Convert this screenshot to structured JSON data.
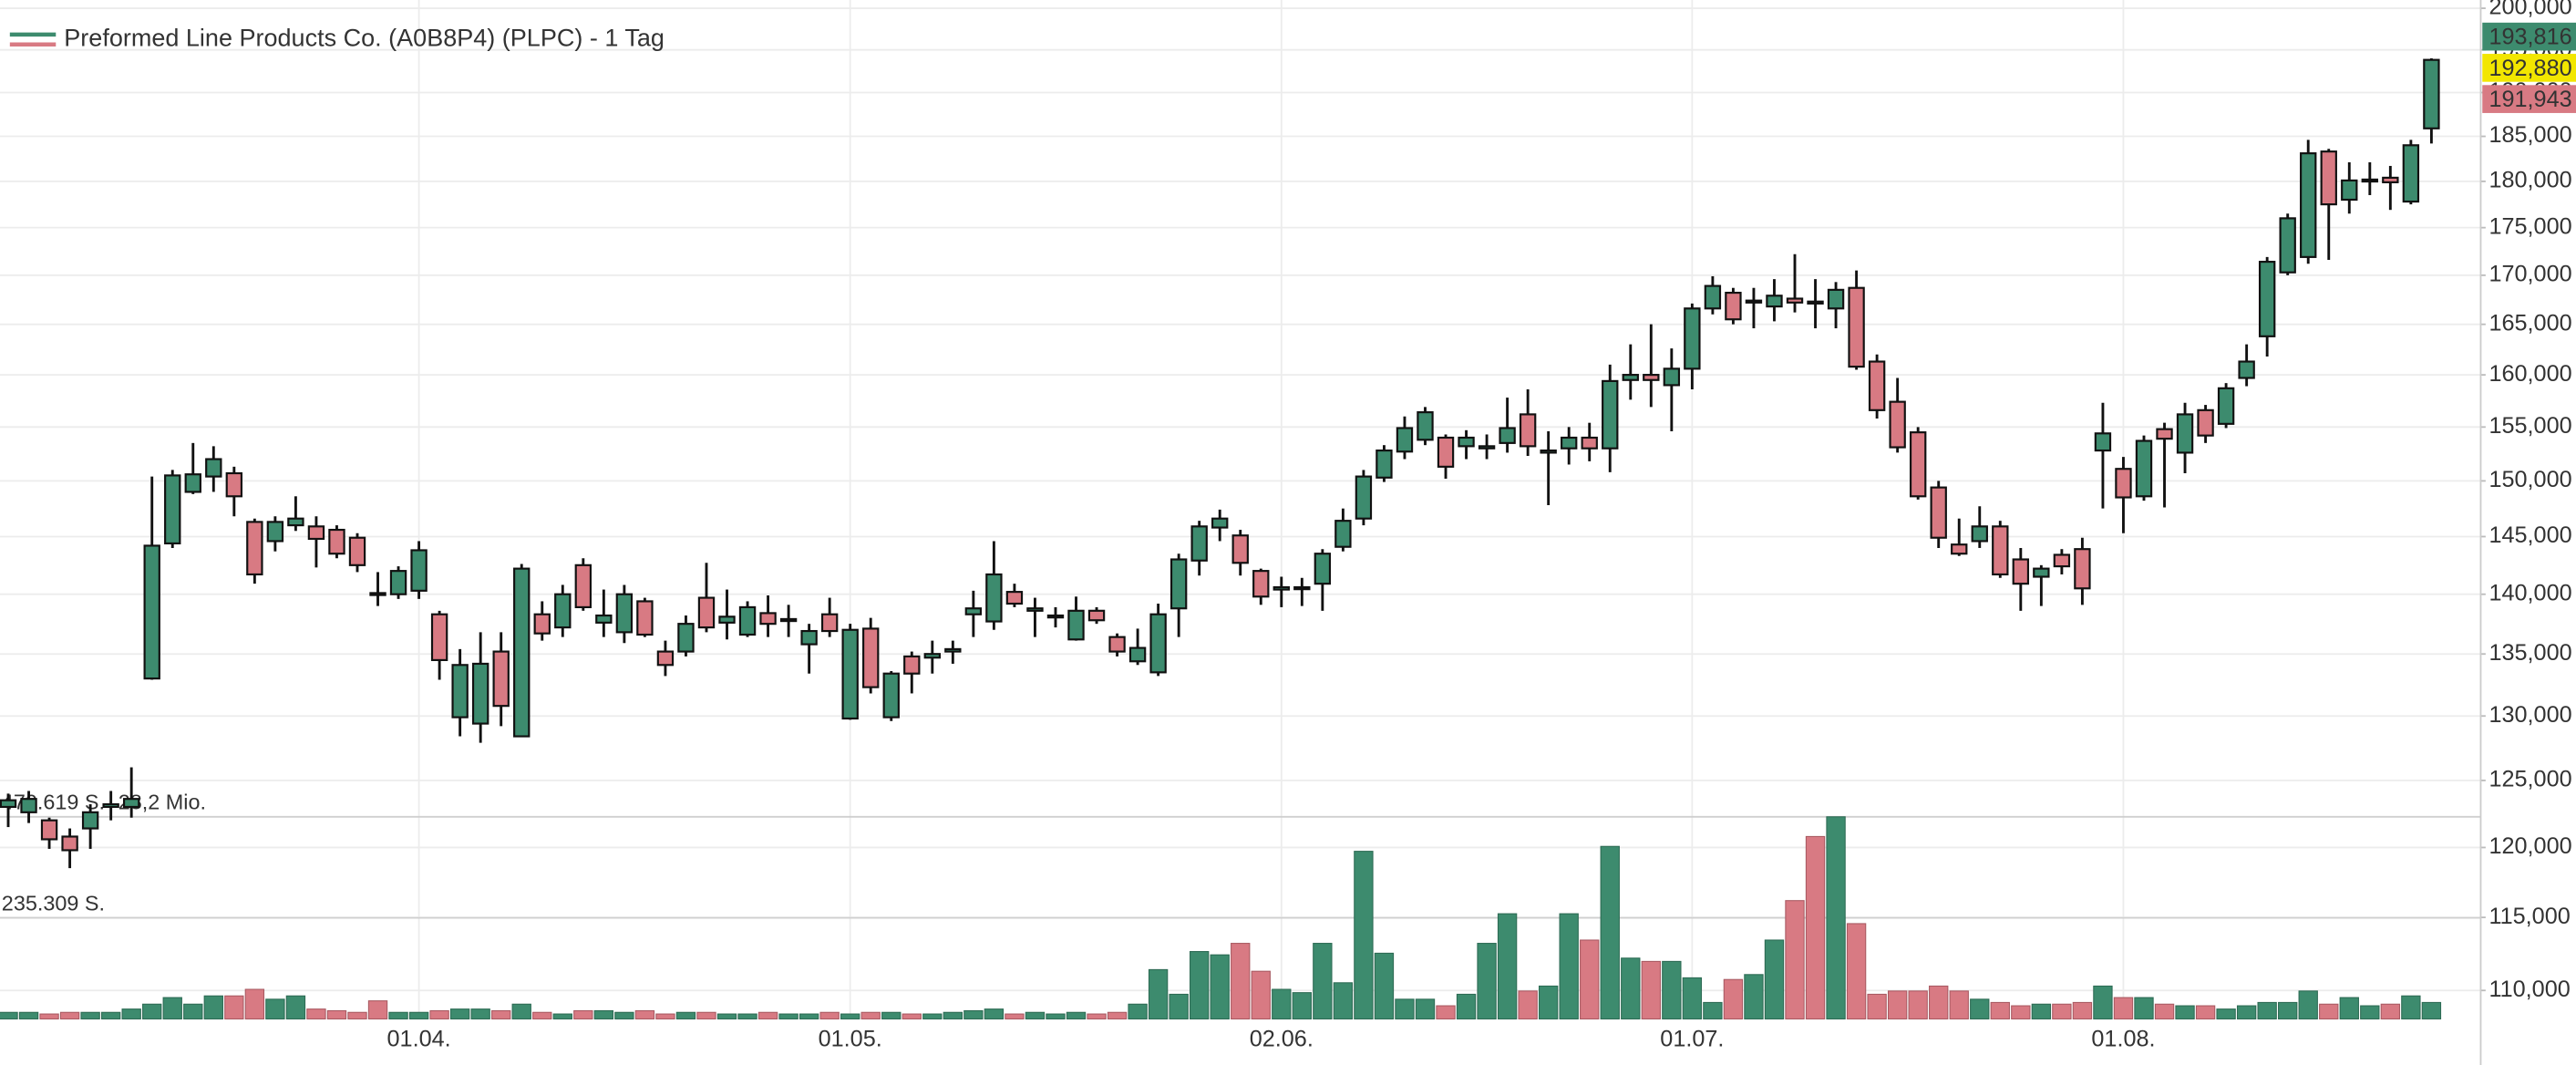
{
  "chart_data": {
    "type": "candlestick",
    "title": "Preformed Line Products Co. (A0B8P4) (PLPC) - 1 Tag",
    "log_scale": true,
    "grid": true,
    "colors": {
      "up": "#3d8b6e",
      "down": "#d87a83"
    },
    "categories": [
      null,
      null,
      null,
      null,
      null,
      null,
      null,
      null,
      null,
      null,
      null,
      null,
      null,
      null,
      null,
      null,
      null,
      null,
      null,
      null,
      "01.04.",
      null,
      null,
      null,
      null,
      null,
      null,
      null,
      null,
      null,
      null,
      null,
      null,
      null,
      null,
      null,
      null,
      null,
      null,
      null,
      null,
      "01.05.",
      null,
      null,
      null,
      null,
      null,
      null,
      null,
      null,
      null,
      null,
      null,
      null,
      null,
      null,
      null,
      null,
      null,
      null,
      null,
      null,
      "02.06.",
      null,
      null,
      null,
      null,
      null,
      null,
      null,
      null,
      null,
      null,
      null,
      null,
      null,
      null,
      null,
      null,
      null,
      null,
      null,
      "01.07.",
      null,
      null,
      null,
      null,
      null,
      null,
      null,
      null,
      null,
      null,
      null,
      null,
      null,
      null,
      null,
      null,
      null,
      null,
      null,
      null,
      "01.08.",
      null,
      null,
      null,
      null,
      null,
      null,
      null,
      null,
      null,
      null,
      null,
      null,
      null,
      null,
      null
    ],
    "open": [
      123000,
      122600,
      122000,
      120800,
      121400,
      123000,
      123000,
      133000,
      144400,
      149000,
      150400,
      150700,
      146300,
      144600,
      146000,
      145900,
      145600,
      144900,
      140100,
      140000,
      140300,
      138300,
      129900,
      129400,
      135200,
      128400,
      138300,
      137200,
      142500,
      137600,
      136800,
      139400,
      135200,
      135200,
      139700,
      137600,
      136600,
      138400,
      137800,
      135800,
      138300,
      129800,
      137100,
      129900,
      134800,
      134700,
      135200,
      138300,
      137700,
      140200,
      138600,
      138100,
      136200,
      138600,
      136400,
      134400,
      133500,
      138800,
      142900,
      145800,
      145100,
      142000,
      140400,
      140500,
      140900,
      144100,
      146600,
      150300,
      152700,
      153800,
      154000,
      153200,
      153000,
      153500,
      156200,
      152600,
      153000,
      154000,
      153000,
      159500,
      160000,
      159000,
      160600,
      166600,
      168200,
      167200,
      166800,
      167600,
      167300,
      166600,
      168700,
      161300,
      157400,
      154500,
      149400,
      144300,
      144600,
      145900,
      143000,
      141500,
      143400,
      143900,
      152800,
      151100,
      148600,
      154800,
      152600,
      156600,
      155300,
      159700,
      163800,
      170300,
      171900,
      183300,
      178000,
      180000,
      180400,
      177800,
      185900
    ],
    "high": [
      124000,
      124200,
      122200,
      121400,
      123200,
      124200,
      126000,
      150400,
      151000,
      153500,
      153200,
      151300,
      146600,
      146800,
      148600,
      146800,
      146000,
      145300,
      141900,
      142400,
      144600,
      138600,
      135400,
      136800,
      136800,
      142600,
      139400,
      140800,
      143100,
      140400,
      140800,
      139700,
      136100,
      138200,
      142700,
      140400,
      139400,
      139900,
      139100,
      137500,
      139700,
      137500,
      138000,
      133600,
      135200,
      136100,
      136100,
      140300,
      144600,
      140900,
      139700,
      138900,
      139800,
      138900,
      136700,
      137100,
      139200,
      143500,
      146400,
      147400,
      145600,
      142200,
      141500,
      141400,
      143900,
      147500,
      151000,
      153300,
      156000,
      156900,
      154300,
      154700,
      154300,
      157800,
      158600,
      154600,
      155000,
      155400,
      161000,
      163000,
      165000,
      162600,
      167100,
      169900,
      168700,
      168700,
      169600,
      172200,
      169600,
      169300,
      170500,
      162000,
      159700,
      155000,
      150000,
      146600,
      147700,
      146400,
      144000,
      142500,
      143900,
      144900,
      157300,
      152200,
      154200,
      155400,
      157300,
      157100,
      159200,
      163000,
      171900,
      176500,
      184600,
      183600,
      182100,
      182100,
      181700,
      184600,
      194000
    ],
    "low": [
      121500,
      121800,
      119900,
      118500,
      119900,
      122000,
      122200,
      132900,
      144000,
      148800,
      149000,
      146800,
      140900,
      143700,
      145500,
      142300,
      143100,
      141900,
      139000,
      139600,
      139600,
      132900,
      128400,
      127900,
      129200,
      128400,
      136100,
      136400,
      138600,
      136400,
      135900,
      136400,
      133200,
      134800,
      136800,
      136200,
      136400,
      136400,
      136400,
      133400,
      136400,
      129700,
      131800,
      129600,
      131800,
      133400,
      134200,
      136400,
      137000,
      138900,
      136400,
      137200,
      136100,
      137500,
      134800,
      134100,
      133200,
      136400,
      141600,
      144600,
      141600,
      139100,
      138900,
      139000,
      138600,
      143700,
      146000,
      149900,
      152000,
      153300,
      150200,
      152000,
      152000,
      152600,
      152300,
      147800,
      151500,
      151800,
      150800,
      157600,
      156900,
      154600,
      158600,
      166000,
      165000,
      164600,
      165300,
      166200,
      164600,
      164600,
      160500,
      155800,
      152600,
      148300,
      144000,
      143300,
      144000,
      141400,
      138600,
      139000,
      141700,
      139100,
      147500,
      145300,
      148200,
      147600,
      150700,
      153500,
      154900,
      158900,
      161800,
      170000,
      171200,
      171600,
      176500,
      178500,
      176900,
      177500,
      184200
    ],
    "close": [
      123500,
      123600,
      120600,
      119800,
      122600,
      123200,
      123600,
      144200,
      150500,
      150600,
      152000,
      148600,
      141700,
      146300,
      146600,
      144800,
      143500,
      142500,
      140000,
      142000,
      143800,
      134500,
      134100,
      134200,
      130800,
      142200,
      136700,
      140000,
      138900,
      138200,
      140000,
      136600,
      134100,
      137500,
      137200,
      138100,
      138900,
      137500,
      137900,
      136900,
      136900,
      137000,
      132300,
      133400,
      133400,
      135000,
      135400,
      138800,
      141700,
      139200,
      138800,
      138200,
      138600,
      137800,
      135200,
      135500,
      138300,
      143000,
      145900,
      146600,
      142700,
      139800,
      140600,
      140600,
      143500,
      146400,
      150400,
      152800,
      154900,
      156400,
      151300,
      154000,
      153200,
      154900,
      153200,
      152800,
      154000,
      153000,
      159400,
      160000,
      159500,
      160600,
      166600,
      168900,
      165500,
      167400,
      167900,
      167200,
      167200,
      168500,
      160800,
      156600,
      153100,
      148600,
      144900,
      143500,
      145900,
      141700,
      140900,
      142200,
      142400,
      140500,
      154400,
      148500,
      153700,
      153900,
      156200,
      154200,
      158700,
      161300,
      171400,
      176000,
      183100,
      177500,
      180100,
      180200,
      179900,
      184000,
      193816
    ],
    "volume": [
      15300,
      15300,
      11500,
      15300,
      15300,
      15300,
      23000,
      34400,
      49700,
      34400,
      53600,
      53600,
      68900,
      45900,
      53600,
      23000,
      19100,
      15300,
      42100,
      15300,
      15300,
      19100,
      23000,
      23000,
      19100,
      34400,
      15300,
      11500,
      19100,
      19100,
      15300,
      19100,
      11500,
      15300,
      15300,
      11500,
      11500,
      15300,
      11500,
      11500,
      15300,
      11500,
      15300,
      15300,
      11500,
      11500,
      15300,
      19100,
      23000,
      11500,
      15300,
      11500,
      15300,
      11500,
      15300,
      34400,
      114800,
      57400,
      156900,
      149200,
      176000,
      111000,
      68900,
      61200,
      176000,
      84200,
      390300,
      153000,
      45900,
      45900,
      30600,
      57400,
      176000,
      244900,
      65000,
      76500,
      244900,
      183600,
      401700,
      141600,
      133900,
      133900,
      95700,
      38300,
      91800,
      103300,
      183600,
      275500,
      424700,
      470600,
      221900,
      57400,
      65000,
      65000,
      76500,
      65000,
      45900,
      38300,
      30600,
      34400,
      34400,
      38300,
      76500,
      49700,
      49700,
      34400,
      30600,
      30600,
      23000,
      30600,
      38300,
      38300,
      65000,
      34400,
      49700,
      30600,
      34400,
      53600,
      38300
    ],
    "ylim": [
      108000,
      200000
    ],
    "yticks": [
      {
        "value": 110000,
        "label": "110,000"
      },
      {
        "value": 115000,
        "label": "115,000"
      },
      {
        "value": 120000,
        "label": "120,000"
      },
      {
        "value": 125000,
        "label": "125,000"
      },
      {
        "value": 130000,
        "label": "130,000"
      },
      {
        "value": 135000,
        "label": "135,000"
      },
      {
        "value": 140000,
        "label": "140,000"
      },
      {
        "value": 145000,
        "label": "145,000"
      },
      {
        "value": 150000,
        "label": "150,000"
      },
      {
        "value": 155000,
        "label": "155,000"
      },
      {
        "value": 160000,
        "label": "160,000"
      },
      {
        "value": 165000,
        "label": "165,000"
      },
      {
        "value": 170000,
        "label": "170,000"
      },
      {
        "value": 175000,
        "label": "175,000"
      },
      {
        "value": 180000,
        "label": "180,000"
      },
      {
        "value": 185000,
        "label": "185,000"
      },
      {
        "value": 190000,
        "label": "190,000"
      },
      {
        "value": 195000,
        "label": "195,000"
      },
      {
        "value": 200000,
        "label": "200,000"
      }
    ],
    "volume_ylim": [
      0,
      470619
    ],
    "volume_ticks": [
      {
        "value": 235309,
        "label": "235.309 S."
      },
      {
        "value": 470619,
        "label": "470.619 S."
      }
    ],
    "volume_turnover": "28,2 Mio.",
    "price_tags": [
      {
        "value": 193816,
        "label": "193,816",
        "color": "#3d8b6e"
      },
      {
        "value": 192880,
        "label": "192,880",
        "color": "#f2e600"
      },
      {
        "value": 191943,
        "label": "191,943",
        "color": "#d87a83"
      }
    ]
  }
}
